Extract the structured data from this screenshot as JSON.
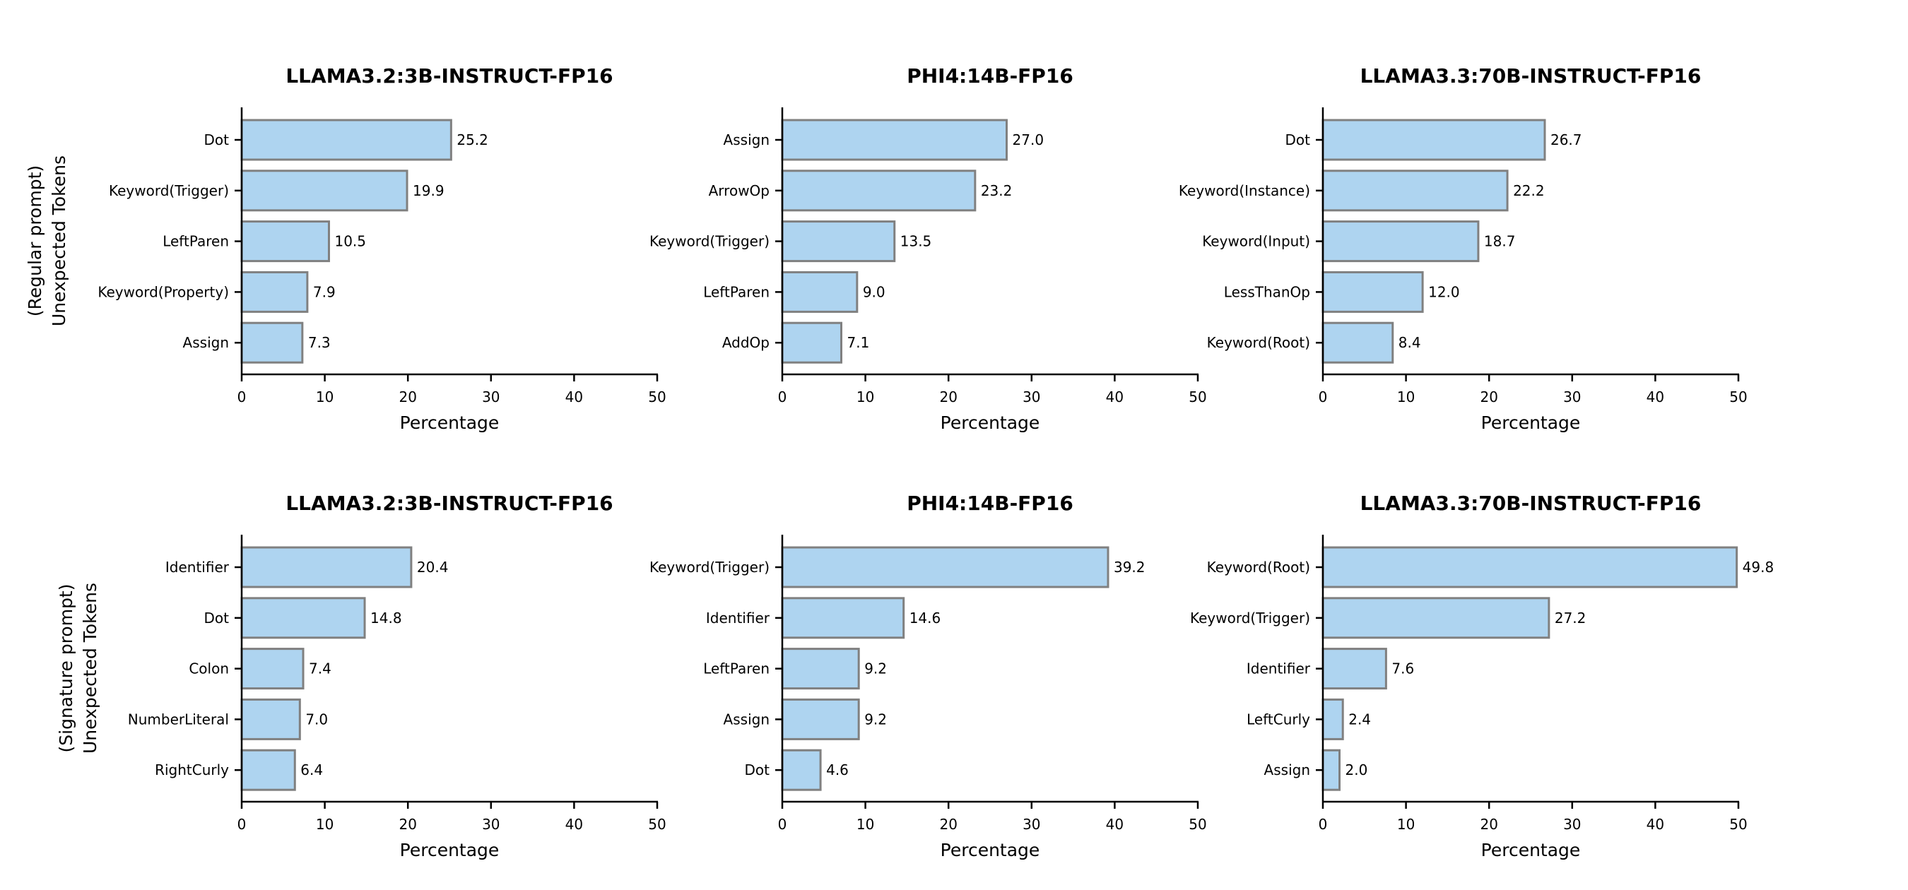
{
  "colors": {
    "bar_fill": "#aed4f0",
    "bar_edge": "#808080",
    "axis": "#000000"
  },
  "row_labels": [
    [
      "Unexpected Tokens",
      "(Regular prompt)"
    ],
    [
      "Unexpected Tokens",
      "(Signature prompt)"
    ]
  ],
  "chart_data": [
    {
      "type": "bar",
      "orientation": "horizontal",
      "title": "LLAMA3.2:3B-INSTRUCT-FP16",
      "xlabel": "Percentage",
      "xlim": [
        0,
        50
      ],
      "xticks": [
        "0",
        "10",
        "20",
        "30",
        "40",
        "50"
      ],
      "categories": [
        "Dot",
        "Keyword(Trigger)",
        "LeftParen",
        "Keyword(Property)",
        "Assign"
      ],
      "values": [
        25.2,
        19.9,
        10.5,
        7.9,
        7.3
      ],
      "labels": [
        "25.2",
        "19.9",
        "10.5",
        "7.9",
        "7.3"
      ]
    },
    {
      "type": "bar",
      "orientation": "horizontal",
      "title": "PHI4:14B-FP16",
      "xlabel": "Percentage",
      "xlim": [
        0,
        50
      ],
      "xticks": [
        "0",
        "10",
        "20",
        "30",
        "40",
        "50"
      ],
      "categories": [
        "Assign",
        "ArrowOp",
        "Keyword(Trigger)",
        "LeftParen",
        "AddOp"
      ],
      "values": [
        27.0,
        23.2,
        13.5,
        9.0,
        7.1
      ],
      "labels": [
        "27.0",
        "23.2",
        "13.5",
        "9.0",
        "7.1"
      ]
    },
    {
      "type": "bar",
      "orientation": "horizontal",
      "title": "LLAMA3.3:70B-INSTRUCT-FP16",
      "xlabel": "Percentage",
      "xlim": [
        0,
        50
      ],
      "xticks": [
        "0",
        "10",
        "20",
        "30",
        "40",
        "50"
      ],
      "categories": [
        "Dot",
        "Keyword(Instance)",
        "Keyword(Input)",
        "LessThanOp",
        "Keyword(Root)"
      ],
      "values": [
        26.7,
        22.2,
        18.7,
        12.0,
        8.4
      ],
      "labels": [
        "26.7",
        "22.2",
        "18.7",
        "12.0",
        "8.4"
      ]
    },
    {
      "type": "bar",
      "orientation": "horizontal",
      "title": "LLAMA3.2:3B-INSTRUCT-FP16",
      "xlabel": "Percentage",
      "xlim": [
        0,
        50
      ],
      "xticks": [
        "0",
        "10",
        "20",
        "30",
        "40",
        "50"
      ],
      "categories": [
        "Identifier",
        "Dot",
        "Colon",
        "NumberLiteral",
        "RightCurly"
      ],
      "values": [
        20.4,
        14.8,
        7.4,
        7.0,
        6.4
      ],
      "labels": [
        "20.4",
        "14.8",
        "7.4",
        "7.0",
        "6.4"
      ]
    },
    {
      "type": "bar",
      "orientation": "horizontal",
      "title": "PHI4:14B-FP16",
      "xlabel": "Percentage",
      "xlim": [
        0,
        50
      ],
      "xticks": [
        "0",
        "10",
        "20",
        "30",
        "40",
        "50"
      ],
      "categories": [
        "Keyword(Trigger)",
        "Identifier",
        "LeftParen",
        "Assign",
        "Dot"
      ],
      "values": [
        39.2,
        14.6,
        9.2,
        9.2,
        4.6
      ],
      "labels": [
        "39.2",
        "14.6",
        "9.2",
        "9.2",
        "4.6"
      ]
    },
    {
      "type": "bar",
      "orientation": "horizontal",
      "title": "LLAMA3.3:70B-INSTRUCT-FP16",
      "xlabel": "Percentage",
      "xlim": [
        0,
        50
      ],
      "xticks": [
        "0",
        "10",
        "20",
        "30",
        "40",
        "50"
      ],
      "categories": [
        "Keyword(Root)",
        "Keyword(Trigger)",
        "Identifier",
        "LeftCurly",
        "Assign"
      ],
      "values": [
        49.8,
        27.2,
        7.6,
        2.4,
        2.0
      ],
      "labels": [
        "49.8",
        "27.2",
        "7.6",
        "2.4",
        "2.0"
      ]
    }
  ]
}
